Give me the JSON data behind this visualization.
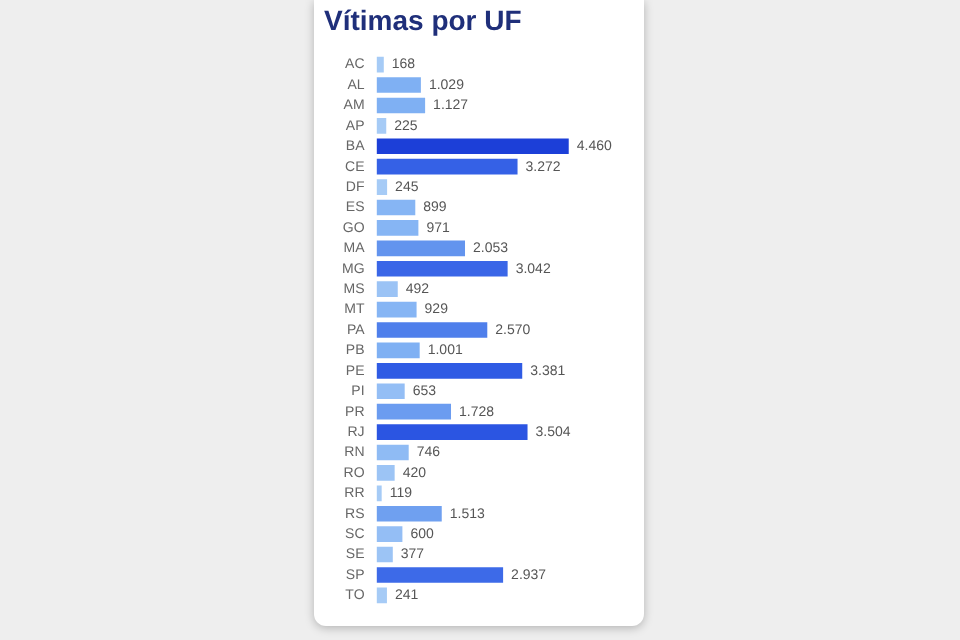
{
  "chart_data": {
    "type": "bar",
    "orientation": "horizontal",
    "title": "Vítimas por UF",
    "categories": [
      "AC",
      "AL",
      "AM",
      "AP",
      "BA",
      "CE",
      "DF",
      "ES",
      "GO",
      "MA",
      "MG",
      "MS",
      "MT",
      "PA",
      "PB",
      "PE",
      "PI",
      "PR",
      "RJ",
      "RN",
      "RO",
      "RR",
      "RS",
      "SC",
      "SE",
      "SP",
      "TO"
    ],
    "values": [
      168,
      1029,
      1127,
      225,
      4460,
      3272,
      245,
      899,
      971,
      2053,
      3042,
      492,
      929,
      2570,
      1001,
      3381,
      653,
      1728,
      3504,
      746,
      420,
      119,
      1513,
      600,
      377,
      2937,
      241
    ],
    "value_labels": [
      "168",
      "1.029",
      "1.127",
      "225",
      "4.460",
      "3.272",
      "245",
      "899",
      "971",
      "2.053",
      "3.042",
      "492",
      "929",
      "2.570",
      "1.001",
      "3.381",
      "653",
      "1.728",
      "3.504",
      "746",
      "420",
      "119",
      "1.513",
      "600",
      "377",
      "2.937",
      "241"
    ],
    "colors": [
      "#a6cbf6",
      "#7fb0f3",
      "#7fb0f3",
      "#a6cbf6",
      "#1c3fd8",
      "#3561e6",
      "#a6cbf6",
      "#86b5f4",
      "#86b5f4",
      "#6394ee",
      "#3a66e7",
      "#9bc3f5",
      "#86b5f4",
      "#4f7feb",
      "#7fb0f3",
      "#2f5be4",
      "#94bef5",
      "#6b9cf0",
      "#2b55e2",
      "#8fbbf4",
      "#9cc4f5",
      "#a6cbf6",
      "#6fa0f0",
      "#94bef5",
      "#9cc4f5",
      "#3d6ae8",
      "#a6cbf6"
    ],
    "tick_labels": "y",
    "grid": false,
    "legend": false
  }
}
